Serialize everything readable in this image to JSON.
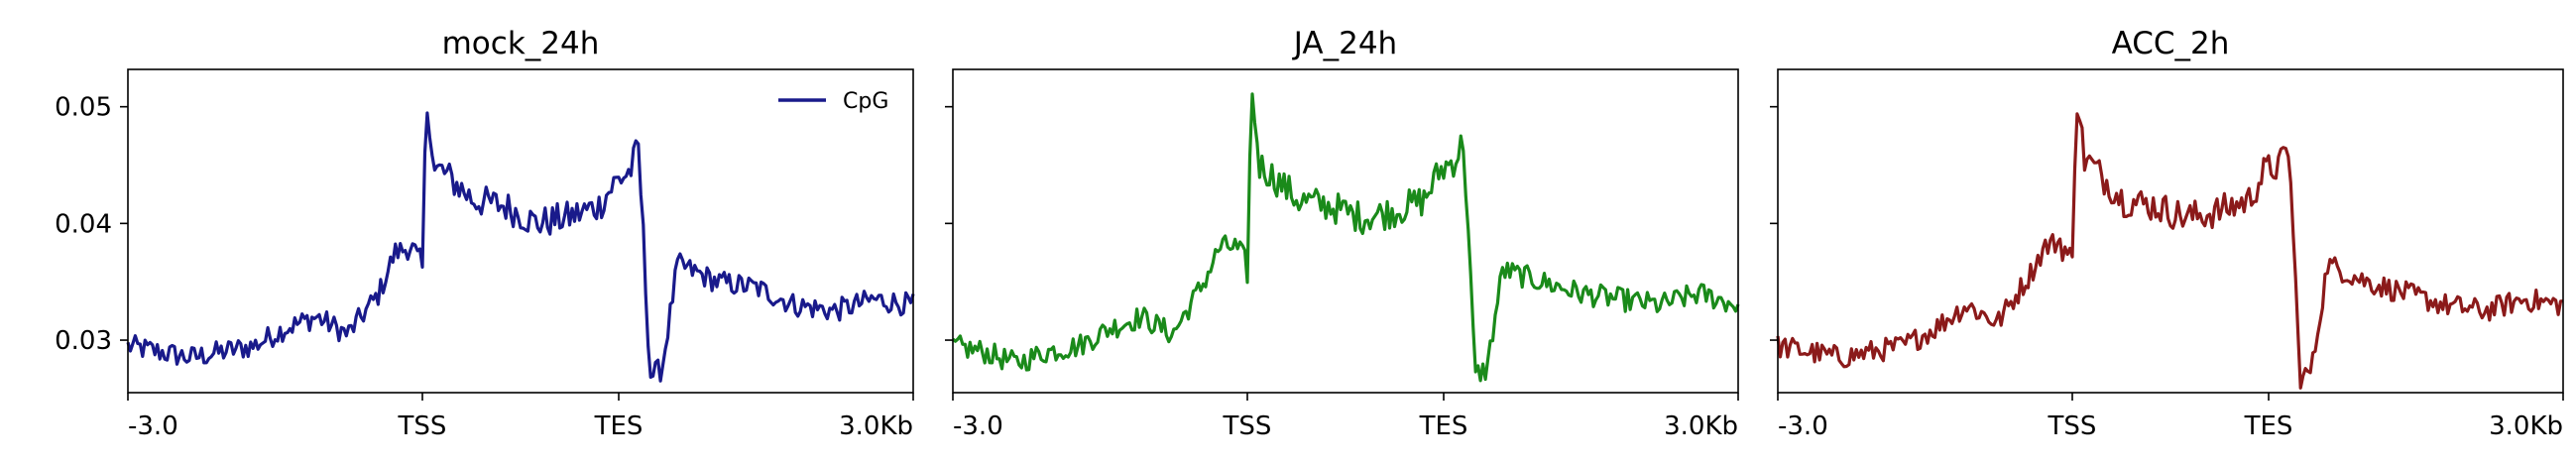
{
  "chart_data": [
    {
      "type": "line",
      "title": "mock_24h",
      "xlabel": "",
      "ylabel": "",
      "x_ticks": [
        "-3.0",
        "TSS",
        "TES",
        "3.0Kb"
      ],
      "y_ticks": [
        "0.03",
        "0.04",
        "0.05"
      ],
      "ylim": [
        0.0255,
        0.0532
      ],
      "legend": {
        "label": "CpG",
        "position": "top-right"
      },
      "grid": false,
      "series": [
        {
          "name": "CpG",
          "color": "#191a8b",
          "x": [
            0,
            0.04,
            0.08,
            0.12,
            0.16,
            0.2,
            0.24,
            0.28,
            0.32,
            0.34,
            0.36,
            0.375,
            0.38,
            0.385,
            0.39,
            0.4,
            0.44,
            0.48,
            0.52,
            0.56,
            0.6,
            0.62,
            0.64,
            0.65,
            0.655,
            0.665,
            0.68,
            0.7,
            0.75,
            0.8,
            0.85,
            0.9,
            0.95,
            1.0
          ],
          "y": [
            0.0295,
            0.029,
            0.0285,
            0.029,
            0.0295,
            0.031,
            0.032,
            0.0305,
            0.034,
            0.0375,
            0.038,
            0.036,
            0.0505,
            0.0485,
            0.0445,
            0.0445,
            0.042,
            0.0415,
            0.04,
            0.0405,
            0.0415,
            0.0435,
            0.0445,
            0.0465,
            0.0405,
            0.027,
            0.0275,
            0.0365,
            0.035,
            0.0345,
            0.033,
            0.0325,
            0.0335,
            0.033
          ]
        }
      ]
    },
    {
      "type": "line",
      "title": "JA_24h",
      "xlabel": "",
      "ylabel": "",
      "x_ticks": [
        "-3.0",
        "TSS",
        "TES",
        "3.0Kb"
      ],
      "y_ticks": [
        "0.03",
        "0.04",
        "0.05"
      ],
      "ylim": [
        0.0255,
        0.0532
      ],
      "grid": false,
      "series": [
        {
          "color": "#1a8a1a",
          "x": [
            0,
            0.04,
            0.08,
            0.12,
            0.16,
            0.2,
            0.24,
            0.28,
            0.32,
            0.34,
            0.36,
            0.375,
            0.38,
            0.385,
            0.39,
            0.4,
            0.44,
            0.48,
            0.52,
            0.56,
            0.6,
            0.62,
            0.64,
            0.65,
            0.655,
            0.665,
            0.68,
            0.7,
            0.75,
            0.8,
            0.85,
            0.9,
            0.95,
            1.0
          ],
          "y": [
            0.0295,
            0.029,
            0.028,
            0.029,
            0.0295,
            0.031,
            0.032,
            0.0305,
            0.035,
            0.038,
            0.038,
            0.036,
            0.051,
            0.049,
            0.045,
            0.0445,
            0.042,
            0.0415,
            0.0405,
            0.041,
            0.042,
            0.0445,
            0.0455,
            0.047,
            0.041,
            0.027,
            0.0275,
            0.036,
            0.035,
            0.034,
            0.0335,
            0.033,
            0.034,
            0.033
          ]
        }
      ]
    },
    {
      "type": "line",
      "title": "ACC_2h",
      "xlabel": "",
      "ylabel": "",
      "x_ticks": [
        "-3.0",
        "TSS",
        "TES",
        "3.0Kb"
      ],
      "y_ticks": [
        "0.03",
        "0.04",
        "0.05"
      ],
      "ylim": [
        0.0255,
        0.0532
      ],
      "grid": false,
      "series": [
        {
          "color": "#8b1a1a",
          "x": [
            0,
            0.04,
            0.08,
            0.12,
            0.16,
            0.2,
            0.24,
            0.28,
            0.32,
            0.34,
            0.36,
            0.375,
            0.38,
            0.385,
            0.39,
            0.4,
            0.44,
            0.48,
            0.52,
            0.56,
            0.6,
            0.62,
            0.64,
            0.65,
            0.655,
            0.665,
            0.68,
            0.7,
            0.75,
            0.8,
            0.85,
            0.9,
            0.95,
            1.0
          ],
          "y": [
            0.0295,
            0.029,
            0.0285,
            0.029,
            0.0295,
            0.031,
            0.033,
            0.0315,
            0.0355,
            0.038,
            0.0385,
            0.0365,
            0.0512,
            0.049,
            0.0455,
            0.045,
            0.042,
            0.0415,
            0.0405,
            0.041,
            0.042,
            0.0445,
            0.045,
            0.0465,
            0.041,
            0.0265,
            0.0275,
            0.0365,
            0.035,
            0.034,
            0.033,
            0.0325,
            0.0335,
            0.033
          ]
        }
      ]
    }
  ]
}
